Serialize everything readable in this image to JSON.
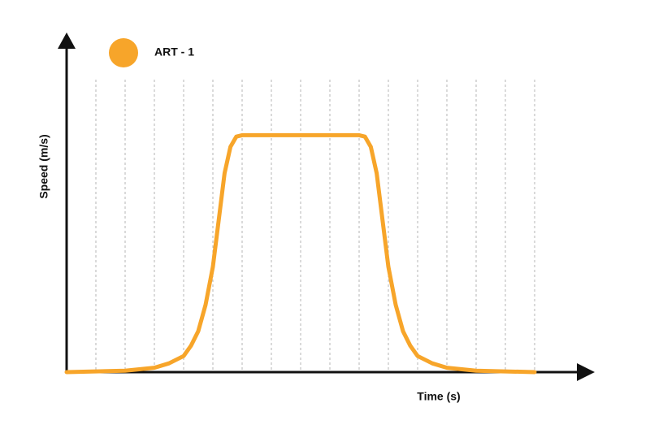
{
  "chart_data": {
    "type": "line",
    "x_label": "Time (s)",
    "y_label": "Speed (m/s)",
    "x": [
      0,
      2,
      3,
      3.5,
      4,
      4.25,
      4.5,
      4.75,
      5,
      5.2,
      5.4,
      5.6,
      5.8,
      6,
      8,
      10,
      10.2,
      10.4,
      10.6,
      10.8,
      11,
      11.25,
      11.5,
      11.75,
      12,
      12.5,
      13,
      14,
      16
    ],
    "series": [
      {
        "name": "ART - 1",
        "color": "#f7a52a",
        "values": [
          0,
          0.05,
          0.15,
          0.3,
          0.55,
          0.9,
          1.4,
          2.3,
          3.6,
          5.2,
          6.8,
          7.7,
          8.05,
          8.1,
          8.1,
          8.1,
          8.05,
          7.7,
          6.8,
          5.2,
          3.6,
          2.3,
          1.4,
          0.9,
          0.55,
          0.3,
          0.15,
          0.05,
          0
        ]
      }
    ],
    "xlim": [
      0,
      18
    ],
    "ylim": [
      0,
      10
    ],
    "xticks": [
      1,
      2,
      3,
      4,
      5,
      6,
      7,
      8,
      9,
      10,
      11,
      12,
      13,
      14,
      15,
      16
    ],
    "grid": true
  }
}
